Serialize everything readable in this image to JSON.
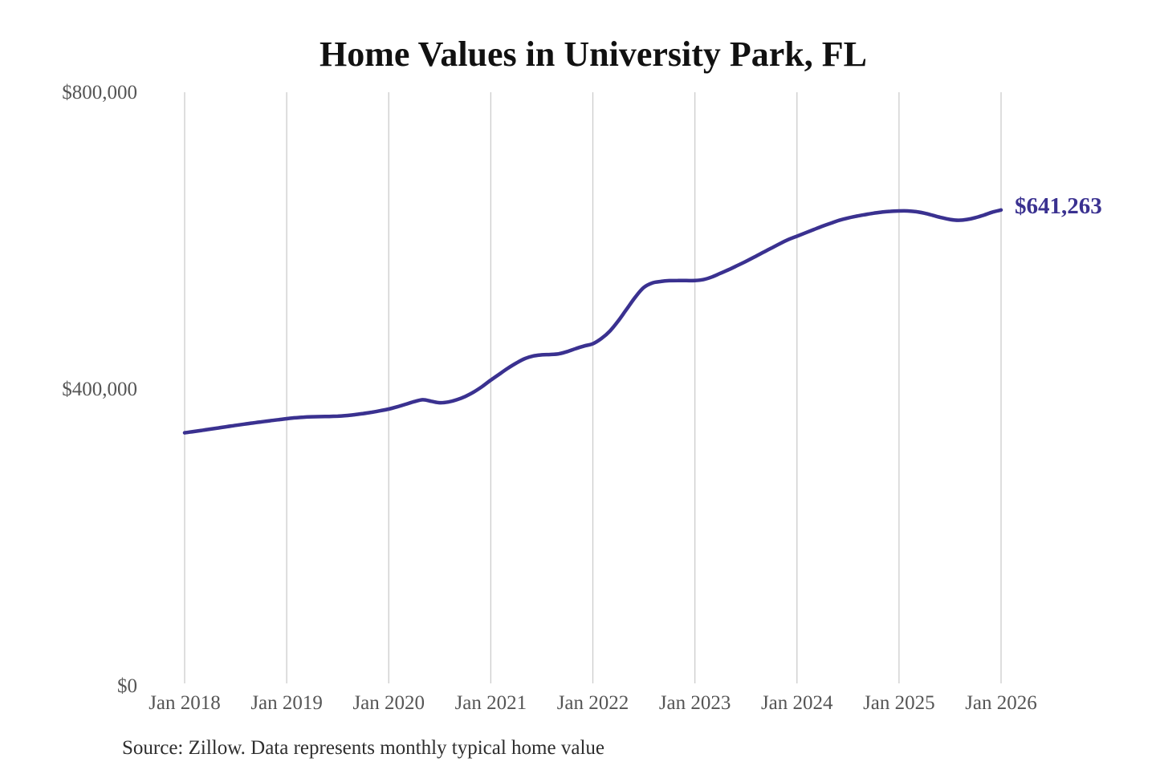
{
  "chart_data": {
    "type": "line",
    "title": "Home Values in University Park, FL",
    "source_note": "Source: Zillow. Data represents monthly typical home value",
    "latest_value_label": "$641,263",
    "latest_value": 641263,
    "interval": "monthly",
    "x_range": [
      "Jan 2018",
      "Jan 2026"
    ],
    "x_tick_labels": [
      "Jan 2018",
      "Jan 2019",
      "Jan 2020",
      "Jan 2021",
      "Jan 2022",
      "Jan 2023",
      "Jan 2024",
      "Jan 2025",
      "Jan 2026"
    ],
    "y_ticks": [
      {
        "label": "$800,000",
        "value": 800000
      },
      {
        "label": "$400,000",
        "value": 400000
      },
      {
        "label": "$0",
        "value": 0
      }
    ],
    "ylim": [
      0,
      800000
    ],
    "grid": "vertical-only",
    "legend": "none",
    "colors": {
      "line": "#3a3190",
      "annotation": "#3a3190",
      "grid": "#cccccc",
      "tick_label": "#555555",
      "title": "#111111",
      "source": "#2e2e2e",
      "background": "#ffffff"
    },
    "series": [
      {
        "name": "Typical home value",
        "start": "2018-01",
        "end": "2026-01",
        "values": [
          341000,
          342600,
          344200,
          345900,
          347600,
          349300,
          351000,
          352600,
          354200,
          355700,
          357200,
          358600,
          360000,
          361200,
          362100,
          362600,
          362800,
          363000,
          363400,
          364200,
          365400,
          366900,
          368700,
          370700,
          373000,
          376000,
          379500,
          383000,
          385500,
          383500,
          381500,
          382500,
          385500,
          390000,
          396000,
          403500,
          412000,
          420000,
          428000,
          435000,
          441000,
          444500,
          446000,
          446500,
          447500,
          450500,
          454500,
          458000,
          461000,
          468000,
          478000,
          492000,
          508000,
          524000,
          537000,
          543000,
          545000,
          546000,
          546200,
          546200,
          546200,
          547500,
          551000,
          556000,
          561000,
          566500,
          572000,
          578000,
          584000,
          590000,
          596000,
          601500,
          606000,
          610500,
          615000,
          619500,
          623500,
          627500,
          630500,
          633000,
          635000,
          637000,
          638500,
          639500,
          640000,
          640000,
          639000,
          637000,
          634000,
          631000,
          628500,
          627500,
          628500,
          631000,
          634500,
          638500,
          641263
        ]
      }
    ]
  }
}
